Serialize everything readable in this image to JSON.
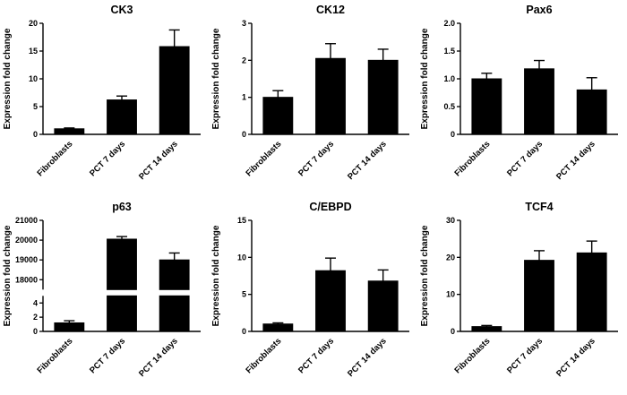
{
  "figure": {
    "ylabel": "Expression fold change",
    "categories": [
      "Fibroblasts",
      "PCT 7 days",
      "PCT 14 days"
    ]
  },
  "chart_data": [
    {
      "type": "bar",
      "title": "CK3",
      "ylabel": "Expression fold change",
      "categories": [
        "Fibroblasts",
        "PCT 7 days",
        "PCT 14 days"
      ],
      "values": [
        1.0,
        6.2,
        15.8
      ],
      "errors": [
        0.15,
        0.7,
        3.0
      ],
      "ylim": [
        0,
        20
      ],
      "yticks": [
        0,
        5,
        10,
        15,
        20
      ],
      "bar_color": "#000000"
    },
    {
      "type": "bar",
      "title": "CK12",
      "ylabel": "Expression fold change",
      "categories": [
        "Fibroblasts",
        "PCT 7 days",
        "PCT 14 days"
      ],
      "values": [
        1.0,
        2.05,
        2.0
      ],
      "errors": [
        0.18,
        0.4,
        0.3
      ],
      "ylim": [
        0,
        3
      ],
      "yticks": [
        0,
        1,
        2,
        3
      ],
      "bar_color": "#000000"
    },
    {
      "type": "bar",
      "title": "Pax6",
      "ylabel": "Expression fold change",
      "categories": [
        "Fibroblasts",
        "PCT 7 days",
        "PCT 14 days"
      ],
      "values": [
        1.0,
        1.18,
        0.8
      ],
      "errors": [
        0.1,
        0.15,
        0.22
      ],
      "ylim": [
        0,
        2
      ],
      "yticks": [
        0,
        0.5,
        1.0,
        1.5,
        2.0
      ],
      "ytick_labels": [
        "0",
        "0.5",
        "1.0",
        "1.5",
        "2.0"
      ],
      "bar_color": "#000000"
    },
    {
      "type": "bar",
      "title": "p63",
      "ylabel": "Expression fold change",
      "categories": [
        "Fibroblasts",
        "PCT 7 days",
        "PCT 14 days"
      ],
      "values": [
        1.2,
        20050,
        19000
      ],
      "errors": [
        0.3,
        130,
        350
      ],
      "axis_break": {
        "lower_lim": [
          0,
          5
        ],
        "lower_ticks": [
          0,
          2,
          4
        ],
        "upper_lim": [
          17500,
          21000
        ],
        "upper_ticks": [
          18000,
          19000,
          20000,
          21000
        ]
      },
      "bar_color": "#000000"
    },
    {
      "type": "bar",
      "title": "C/EBPD",
      "ylabel": "Expression fold change",
      "categories": [
        "Fibroblasts",
        "PCT 7 days",
        "PCT 14 days"
      ],
      "values": [
        1.0,
        8.2,
        6.8
      ],
      "errors": [
        0.15,
        1.7,
        1.5
      ],
      "ylim": [
        0,
        15
      ],
      "yticks": [
        0,
        5,
        10,
        15
      ],
      "bar_color": "#000000"
    },
    {
      "type": "bar",
      "title": "TCF4",
      "ylabel": "Expression fold change",
      "categories": [
        "Fibroblasts",
        "PCT 7 days",
        "PCT 14 days"
      ],
      "values": [
        1.3,
        19.2,
        21.2
      ],
      "errors": [
        0.3,
        2.6,
        3.2
      ],
      "ylim": [
        0,
        30
      ],
      "yticks": [
        0,
        10,
        20,
        30
      ],
      "bar_color": "#000000"
    }
  ]
}
